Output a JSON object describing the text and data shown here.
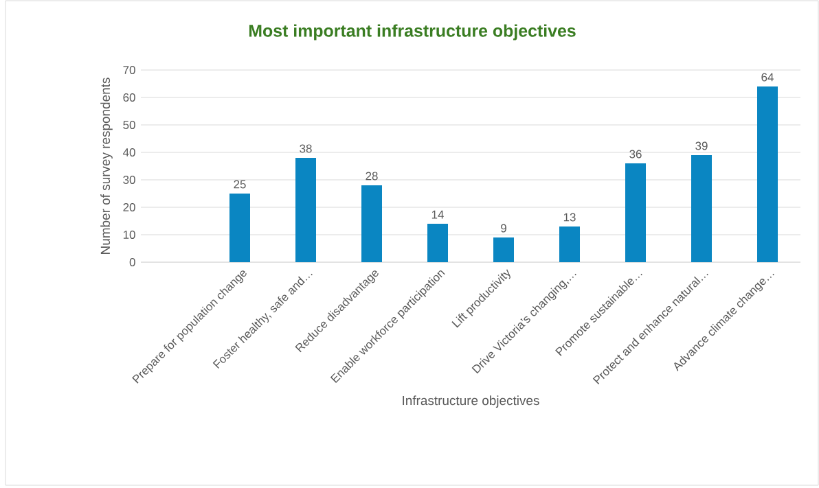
{
  "chart_data": {
    "type": "bar",
    "title": "Most important infrastructure objectives",
    "xlabel": "Infrastructure objectives",
    "ylabel": "Number of survey respondents",
    "categories": [
      null,
      "Prepare for population change",
      "Foster healthy, safe and…",
      "Reduce disadvantage",
      "Enable workforce participation",
      "Lift productivity",
      "Drive Victoria’s changing,…",
      "Promote sustainable…",
      "Protect and enhance natural…",
      "Advance climate change…"
    ],
    "values": [
      null,
      25,
      38,
      28,
      14,
      9,
      13,
      36,
      39,
      64
    ],
    "color": "#0a86c2",
    "ylim": [
      0,
      70
    ],
    "yticks": [
      0,
      10,
      20,
      30,
      40,
      50,
      60,
      70
    ],
    "grid": "y",
    "data_labels": true
  }
}
